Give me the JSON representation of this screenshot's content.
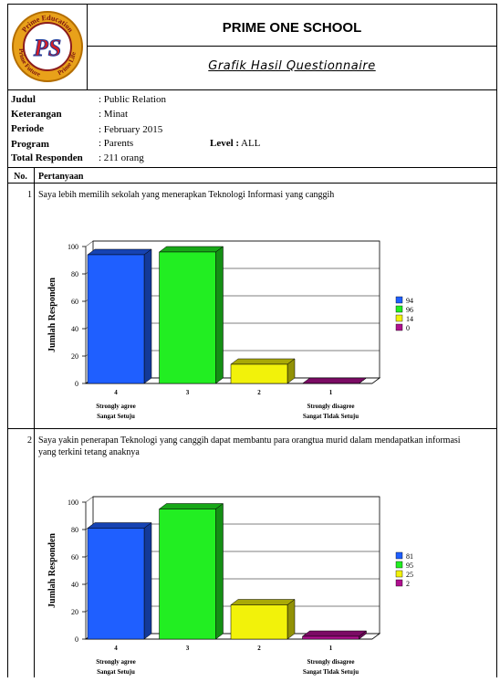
{
  "logo": {
    "text_top": "Prime Education",
    "text_left": "Prime Future",
    "text_right": "Prime Life",
    "monogram": "PS"
  },
  "header": {
    "school": "PRIME ONE SCHOOL",
    "subtitle": "Grafik Hasil Questionnaire"
  },
  "meta": [
    {
      "label": "Judul",
      "value": ": Public Relation"
    },
    {
      "label": "Keterangan",
      "value": ": Minat"
    },
    {
      "label": "Periode",
      "value": ": February 2015"
    },
    {
      "label": "Program",
      "value": ": Parents"
    },
    {
      "label": "Total Responden",
      "value": ": 211 orang"
    }
  ],
  "level": {
    "label": "Level :",
    "value": "ALL"
  },
  "table": {
    "col_no": "No.",
    "col_question": "Pertanyaan"
  },
  "questions": [
    {
      "no": "1",
      "text_lines": [
        "Saya lebih memilih sekolah yang menerapkan Teknologi Informasi yang canggih"
      ]
    },
    {
      "no": "2",
      "text_lines": [
        "Saya yakin penerapan Teknologi yang canggih dapat membantu para orangtua murid dalam mendapatkan informasi",
        "yang terkini tetang anaknya"
      ]
    }
  ],
  "colors": {
    "s4": "#1f5fff",
    "s3": "#22ee22",
    "s2": "#f2f20a",
    "s1": "#b0108f"
  },
  "chart_data": [
    {
      "type": "bar",
      "categories": [
        "4",
        "3",
        "2",
        "1"
      ],
      "values": [
        94,
        96,
        14,
        0
      ],
      "legend": [
        "94",
        "96",
        "14",
        "0"
      ],
      "ylabel": "Jumlah Responden",
      "ylim": [
        0,
        100
      ],
      "yticks": [
        "0",
        "20",
        "40",
        "60",
        "80",
        "100"
      ],
      "category_notes": {
        "agree_line1": "Strongly agree",
        "agree_line2": "Sangat Setuju",
        "disagree_line1": "Strongly disagree",
        "disagree_line2": "Sangat Tidak Setuju"
      }
    },
    {
      "type": "bar",
      "categories": [
        "4",
        "3",
        "2",
        "1"
      ],
      "values": [
        81,
        95,
        25,
        2
      ],
      "legend": [
        "81",
        "95",
        "25",
        "2"
      ],
      "ylabel": "Jumlah Responden",
      "ylim": [
        0,
        100
      ],
      "yticks": [
        "0",
        "20",
        "40",
        "60",
        "80",
        "100"
      ],
      "category_notes": {
        "agree_line1": "Strongly agree",
        "agree_line2": "Sangat Setuju",
        "disagree_line1": "Strongly disagree",
        "disagree_line2": "Sangat Tidak Setuju"
      }
    }
  ]
}
